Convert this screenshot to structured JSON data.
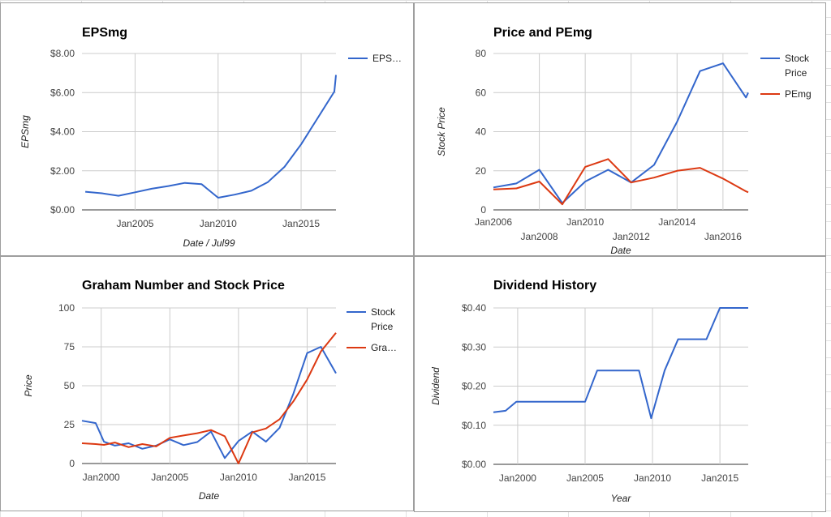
{
  "chart_data": [
    {
      "id": "eps",
      "type": "line",
      "title": "EPSmg",
      "xlabel": "Date / Jul99",
      "ylabel": "EPSmg",
      "x_ticks": [
        "Jan2005",
        "Jan2010",
        "Jan2015"
      ],
      "y_ticks": [
        "$0.00",
        "$2.00",
        "$4.00",
        "$6.00",
        "$8.00"
      ],
      "x_range": [
        2001.8,
        2017.1
      ],
      "ylim": [
        0,
        8
      ],
      "legend": "right",
      "grid": true,
      "series": [
        {
          "name": "EPS…",
          "color": "#3366cc",
          "x": [
            2002,
            2003,
            2004,
            2005,
            2006,
            2007,
            2008,
            2009,
            2010,
            2011,
            2012,
            2013,
            2014,
            2015,
            2016,
            2017
          ],
          "y": [
            0.93,
            0.85,
            0.72,
            0.9,
            1.08,
            1.22,
            1.38,
            1.32,
            0.62,
            0.78,
            0.98,
            1.42,
            2.2,
            3.35,
            4.7,
            6.05
          ]
        }
      ],
      "series_tail": {
        "x": 2017.1,
        "y": 6.9
      }
    },
    {
      "id": "pe",
      "type": "line",
      "title": "Price and PEmg",
      "xlabel": "Date",
      "ylabel": "Stock Price",
      "x_ticks": [
        "Jan2006",
        "Jan2008",
        "Jan2010",
        "Jan2012",
        "Jan2014",
        "Jan2016"
      ],
      "y_ticks": [
        "0",
        "20",
        "40",
        "60",
        "80"
      ],
      "x_range": [
        2006,
        2017.1
      ],
      "ylim": [
        0,
        80
      ],
      "legend": "right",
      "grid": true,
      "series": [
        {
          "name": "Stock Price",
          "color": "#3366cc",
          "x": [
            2006,
            2007,
            2008,
            2009,
            2010,
            2011,
            2012,
            2013,
            2014,
            2015,
            2016,
            2017,
            2017.1
          ],
          "y": [
            11.5,
            13.5,
            20.5,
            3.5,
            14.5,
            20.5,
            14,
            23,
            45,
            71,
            75,
            57.5,
            60
          ]
        },
        {
          "name": "PEmg",
          "color": "#dc3912",
          "x": [
            2006,
            2007,
            2008,
            2009,
            2010,
            2011,
            2012,
            2013,
            2014,
            2015,
            2016,
            2017,
            2017.1
          ],
          "y": [
            10.5,
            11,
            14.5,
            2.8,
            22,
            26,
            14,
            16.5,
            20,
            21.5,
            16,
            9.5,
            9
          ]
        }
      ]
    },
    {
      "id": "graham",
      "type": "line",
      "title": "Graham Number and Stock Price",
      "xlabel": "Date",
      "ylabel": "Price",
      "x_ticks": [
        "Jan2000",
        "Jan2005",
        "Jan2010",
        "Jan2015"
      ],
      "y_ticks": [
        "0",
        "25",
        "50",
        "75",
        "100"
      ],
      "x_range": [
        1998.6,
        2017.1
      ],
      "ylim": [
        0,
        100
      ],
      "legend": "right",
      "grid": true,
      "series": [
        {
          "name": "Stock Price",
          "color": "#3366cc",
          "x": [
            1998.6,
            1999.6,
            2000.2,
            2001,
            2002,
            2003,
            2004,
            2005,
            2006,
            2007,
            2008,
            2009,
            2010,
            2011,
            2012,
            2013,
            2014,
            2015,
            2016,
            2017.1
          ],
          "y": [
            27.5,
            26,
            14,
            11.5,
            13,
            9.5,
            11.5,
            15.5,
            11.8,
            13.8,
            20.5,
            3.5,
            14.5,
            20.5,
            14,
            23,
            45,
            71,
            75,
            58
          ]
        },
        {
          "name": "Gra…",
          "color": "#dc3912",
          "x": [
            1998.6,
            1999.6,
            2000.2,
            2001,
            2002,
            2003,
            2004,
            2005,
            2006,
            2007,
            2008,
            2009,
            2010,
            2011,
            2012,
            2013,
            2014,
            2015,
            2016,
            2017.1
          ],
          "y": [
            13,
            12.5,
            12,
            13.5,
            10.5,
            12.5,
            11,
            16.5,
            18,
            19.5,
            21.5,
            17.5,
            0,
            20,
            22.5,
            28.5,
            40,
            54,
            72,
            84
          ]
        }
      ]
    },
    {
      "id": "div",
      "type": "line",
      "title": "Dividend History",
      "xlabel": "Year",
      "ylabel": "Dividend",
      "x_ticks": [
        "Jan2000",
        "Jan2005",
        "Jan2010",
        "Jan2015"
      ],
      "y_ticks": [
        "$0.00",
        "$0.10",
        "$0.20",
        "$0.30",
        "$0.40"
      ],
      "x_range": [
        1998.2,
        2017.1
      ],
      "ylim": [
        0,
        0.4
      ],
      "grid": true,
      "series": [
        {
          "name": "Dividend",
          "color": "#3366cc",
          "x": [
            1998.2,
            1999.1,
            1999.9,
            2001,
            2002,
            2003,
            2004,
            2005,
            2005.9,
            2007,
            2008,
            2009,
            2009.9,
            2010.9,
            2011.9,
            2013,
            2014,
            2015,
            2016,
            2017.1
          ],
          "y": [
            0.133,
            0.137,
            0.16,
            0.16,
            0.16,
            0.16,
            0.16,
            0.16,
            0.24,
            0.24,
            0.24,
            0.24,
            0.118,
            0.24,
            0.32,
            0.32,
            0.32,
            0.4,
            0.4,
            0.4
          ]
        }
      ]
    }
  ]
}
